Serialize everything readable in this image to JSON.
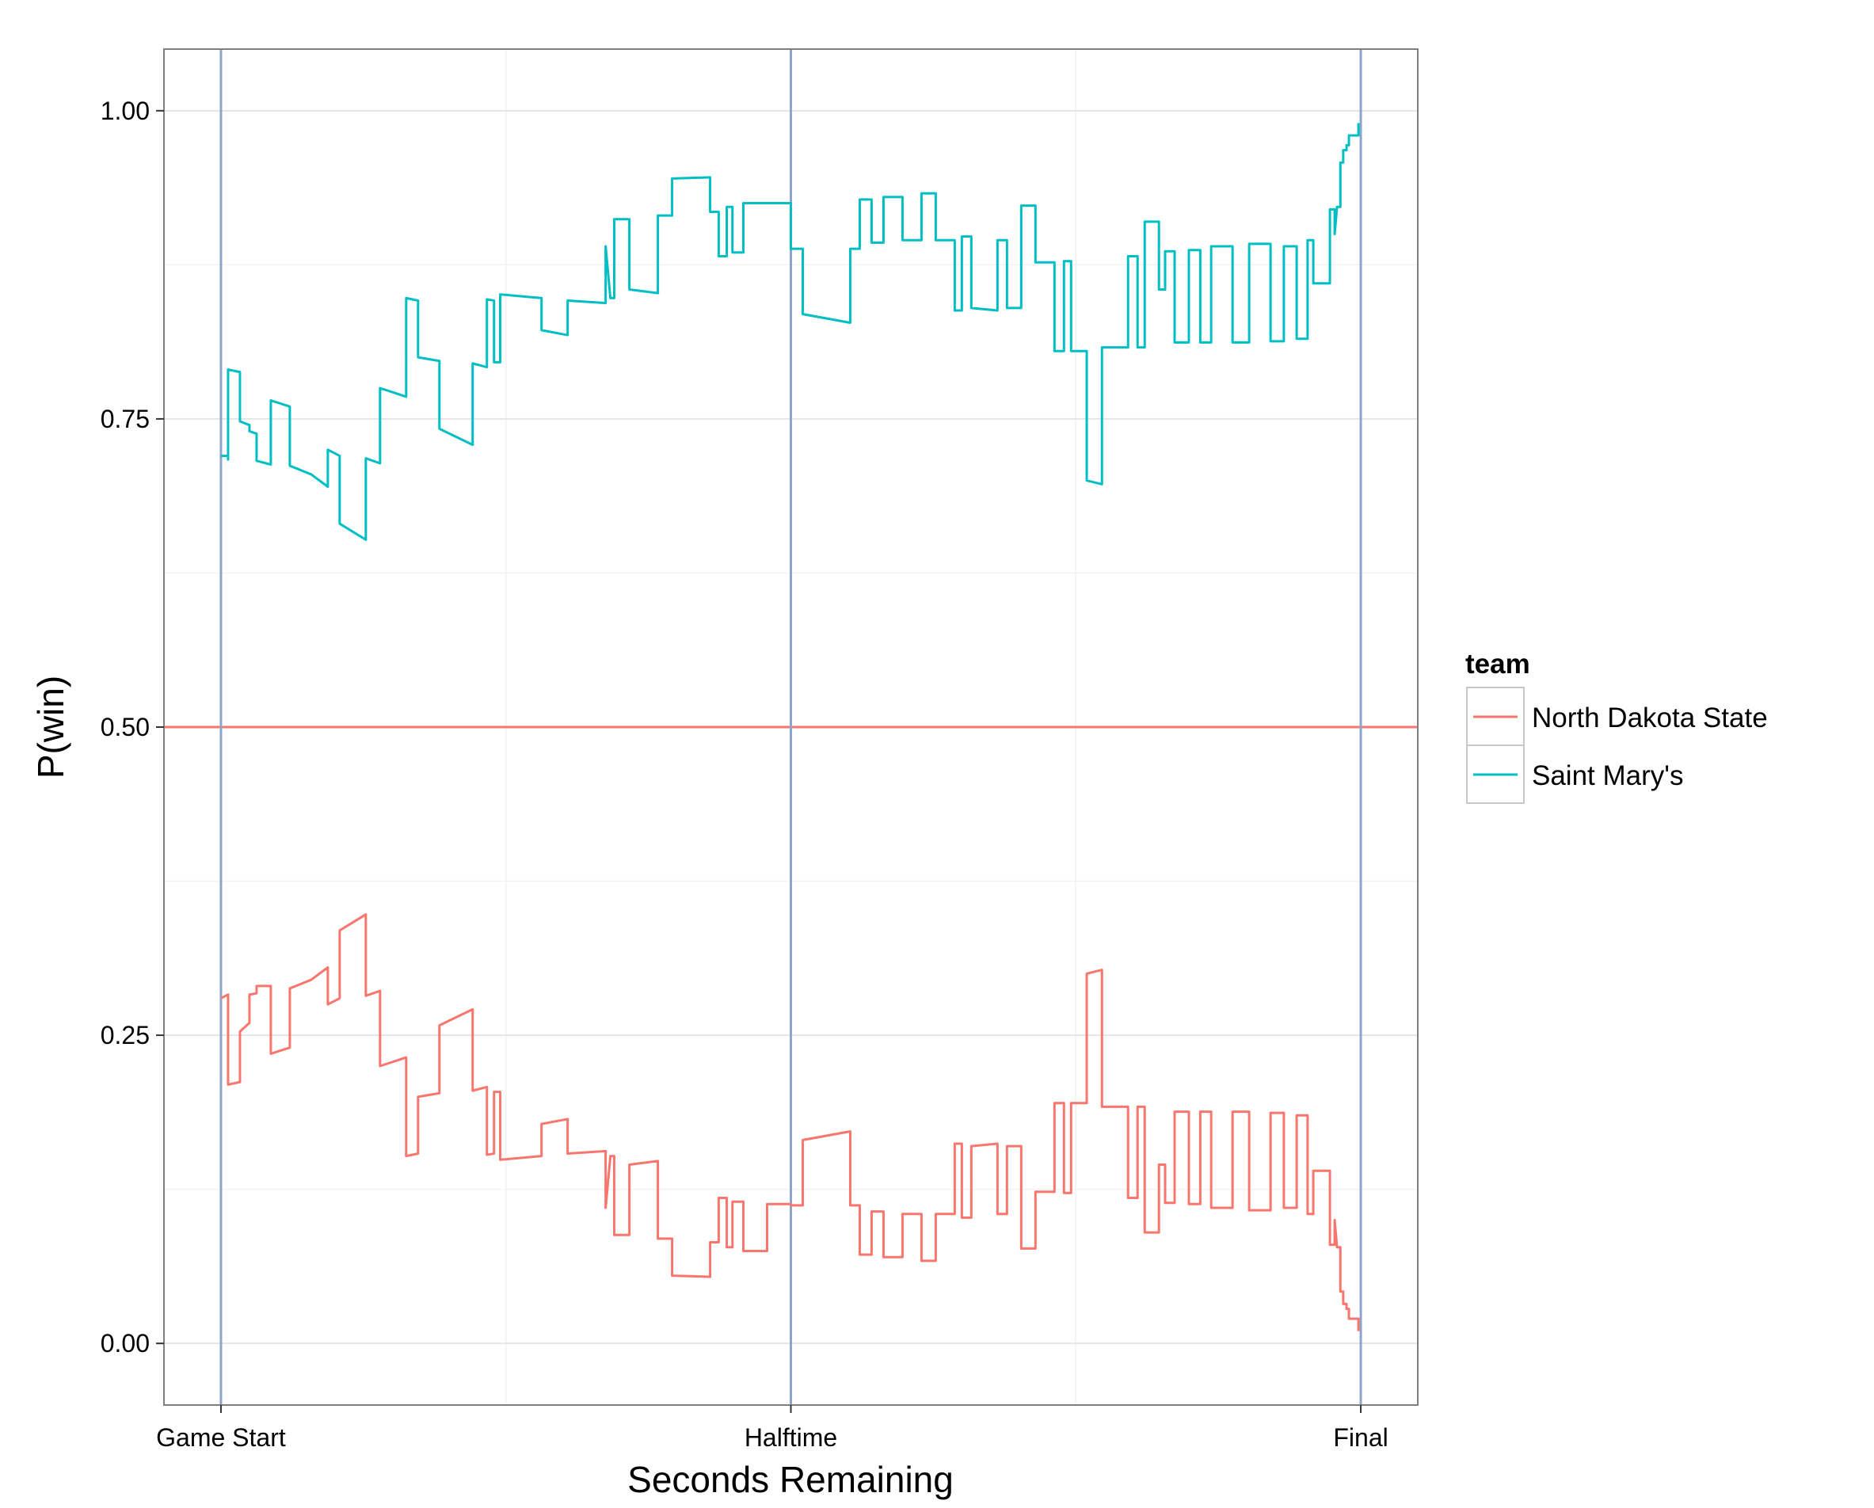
{
  "chart_data": {
    "type": "line",
    "title": "",
    "xlabel": "Seconds Remaining",
    "ylabel": "P(win)",
    "x_ticks": [
      {
        "value": 2400,
        "label": "Game Start"
      },
      {
        "value": 1200,
        "label": "Halftime"
      },
      {
        "value": 0,
        "label": "Final"
      }
    ],
    "x_reversed": true,
    "xlim": [
      2520,
      -120
    ],
    "y_ticks": [
      0,
      0.25,
      0.5,
      0.75,
      1
    ],
    "y_tick_labels": [
      "0.00",
      "0.25",
      "0.50",
      "0.75",
      "1.00"
    ],
    "ylim": [
      -0.05,
      1.05
    ],
    "grid": true,
    "reference_lines": {
      "horizontal": {
        "y": 0.5,
        "color": "#F8766D"
      },
      "vertical": {
        "x": [
          2400,
          1200,
          0
        ],
        "color": "#8DA5C8"
      }
    },
    "legend": {
      "title": "team",
      "placement": "right",
      "entries": [
        {
          "label": "North Dakota State",
          "color": "#F8766D"
        },
        {
          "label": "Saint Mary's",
          "color": "#00BFC4"
        }
      ]
    },
    "series": [
      {
        "name": "Saint Mary's",
        "color": "#00BFC4",
        "points": [
          [
            2400,
            0.72
          ],
          [
            2385,
            0.72
          ],
          [
            2385,
            0.717
          ],
          [
            2385,
            0.79
          ],
          [
            2360,
            0.788
          ],
          [
            2360,
            0.748
          ],
          [
            2340,
            0.745
          ],
          [
            2340,
            0.74
          ],
          [
            2325,
            0.738
          ],
          [
            2325,
            0.716
          ],
          [
            2295,
            0.713
          ],
          [
            2295,
            0.765
          ],
          [
            2255,
            0.76
          ],
          [
            2255,
            0.712
          ],
          [
            2210,
            0.705
          ],
          [
            2175,
            0.695
          ],
          [
            2175,
            0.725
          ],
          [
            2150,
            0.72
          ],
          [
            2150,
            0.665
          ],
          [
            2095,
            0.652
          ],
          [
            2095,
            0.718
          ],
          [
            2065,
            0.714
          ],
          [
            2065,
            0.775
          ],
          [
            2010,
            0.768
          ],
          [
            2010,
            0.848
          ],
          [
            1985,
            0.846
          ],
          [
            1985,
            0.8
          ],
          [
            1940,
            0.797
          ],
          [
            1940,
            0.742
          ],
          [
            1870,
            0.729
          ],
          [
            1870,
            0.795
          ],
          [
            1840,
            0.792
          ],
          [
            1840,
            0.847
          ],
          [
            1825,
            0.846
          ],
          [
            1825,
            0.796
          ],
          [
            1812,
            0.796
          ],
          [
            1812,
            0.851
          ],
          [
            1725,
            0.848
          ],
          [
            1725,
            0.822
          ],
          [
            1670,
            0.818
          ],
          [
            1670,
            0.846
          ],
          [
            1590,
            0.844
          ],
          [
            1590,
            0.89
          ],
          [
            1580,
            0.848
          ],
          [
            1572,
            0.848
          ],
          [
            1572,
            0.912
          ],
          [
            1540,
            0.912
          ],
          [
            1540,
            0.855
          ],
          [
            1480,
            0.852
          ],
          [
            1480,
            0.915
          ],
          [
            1450,
            0.915
          ],
          [
            1450,
            0.945
          ],
          [
            1370,
            0.946
          ],
          [
            1370,
            0.918
          ],
          [
            1352,
            0.918
          ],
          [
            1352,
            0.882
          ],
          [
            1335,
            0.882
          ],
          [
            1335,
            0.922
          ],
          [
            1323,
            0.922
          ],
          [
            1323,
            0.885
          ],
          [
            1300,
            0.885
          ],
          [
            1300,
            0.925
          ],
          [
            1200,
            0.925
          ],
          [
            1200,
            0.888
          ],
          [
            1175,
            0.888
          ],
          [
            1175,
            0.835
          ],
          [
            1075,
            0.828
          ],
          [
            1075,
            0.888
          ],
          [
            1055,
            0.888
          ],
          [
            1055,
            0.928
          ],
          [
            1030,
            0.928
          ],
          [
            1030,
            0.893
          ],
          [
            1005,
            0.893
          ],
          [
            1005,
            0.93
          ],
          [
            965,
            0.93
          ],
          [
            965,
            0.895
          ],
          [
            925,
            0.895
          ],
          [
            925,
            0.933
          ],
          [
            895,
            0.933
          ],
          [
            895,
            0.895
          ],
          [
            855,
            0.895
          ],
          [
            855,
            0.838
          ],
          [
            840,
            0.838
          ],
          [
            840,
            0.898
          ],
          [
            820,
            0.898
          ],
          [
            820,
            0.84
          ],
          [
            765,
            0.838
          ],
          [
            765,
            0.895
          ],
          [
            745,
            0.895
          ],
          [
            745,
            0.84
          ],
          [
            715,
            0.84
          ],
          [
            715,
            0.923
          ],
          [
            685,
            0.923
          ],
          [
            685,
            0.877
          ],
          [
            645,
            0.877
          ],
          [
            645,
            0.805
          ],
          [
            625,
            0.805
          ],
          [
            625,
            0.878
          ],
          [
            610,
            0.878
          ],
          [
            610,
            0.805
          ],
          [
            577,
            0.805
          ],
          [
            577,
            0.7
          ],
          [
            545,
            0.697
          ],
          [
            545,
            0.808
          ],
          [
            490,
            0.808
          ],
          [
            490,
            0.882
          ],
          [
            470,
            0.882
          ],
          [
            470,
            0.808
          ],
          [
            455,
            0.808
          ],
          [
            455,
            0.91
          ],
          [
            425,
            0.91
          ],
          [
            425,
            0.855
          ],
          [
            412,
            0.855
          ],
          [
            412,
            0.886
          ],
          [
            392,
            0.886
          ],
          [
            392,
            0.812
          ],
          [
            362,
            0.812
          ],
          [
            362,
            0.887
          ],
          [
            338,
            0.887
          ],
          [
            338,
            0.812
          ],
          [
            315,
            0.812
          ],
          [
            315,
            0.89
          ],
          [
            270,
            0.89
          ],
          [
            270,
            0.812
          ],
          [
            235,
            0.812
          ],
          [
            235,
            0.892
          ],
          [
            190,
            0.892
          ],
          [
            190,
            0.813
          ],
          [
            162,
            0.813
          ],
          [
            162,
            0.89
          ],
          [
            135,
            0.89
          ],
          [
            135,
            0.815
          ],
          [
            112,
            0.815
          ],
          [
            112,
            0.895
          ],
          [
            100,
            0.895
          ],
          [
            100,
            0.86
          ],
          [
            65,
            0.86
          ],
          [
            65,
            0.92
          ],
          [
            55,
            0.92
          ],
          [
            55,
            0.9
          ],
          [
            50,
            0.922
          ],
          [
            43,
            0.922
          ],
          [
            43,
            0.958
          ],
          [
            37,
            0.958
          ],
          [
            37,
            0.968
          ],
          [
            30,
            0.968
          ],
          [
            30,
            0.972
          ],
          [
            25,
            0.972
          ],
          [
            25,
            0.98
          ],
          [
            5,
            0.98
          ],
          [
            5,
            0.99
          ]
        ]
      },
      {
        "name": "North Dakota State",
        "color": "#F8766D",
        "points": [
          [
            2400,
            0.28
          ],
          [
            2385,
            0.283
          ],
          [
            2385,
            0.21
          ],
          [
            2360,
            0.212
          ],
          [
            2360,
            0.253
          ],
          [
            2340,
            0.26
          ],
          [
            2340,
            0.283
          ],
          [
            2325,
            0.284
          ],
          [
            2325,
            0.29
          ],
          [
            2295,
            0.29
          ],
          [
            2295,
            0.235
          ],
          [
            2255,
            0.24
          ],
          [
            2255,
            0.288
          ],
          [
            2210,
            0.295
          ],
          [
            2175,
            0.305
          ],
          [
            2175,
            0.275
          ],
          [
            2150,
            0.28
          ],
          [
            2150,
            0.335
          ],
          [
            2095,
            0.348
          ],
          [
            2095,
            0.282
          ],
          [
            2065,
            0.286
          ],
          [
            2065,
            0.225
          ],
          [
            2010,
            0.232
          ],
          [
            2010,
            0.152
          ],
          [
            1985,
            0.154
          ],
          [
            1985,
            0.2
          ],
          [
            1940,
            0.203
          ],
          [
            1940,
            0.258
          ],
          [
            1870,
            0.271
          ],
          [
            1870,
            0.205
          ],
          [
            1840,
            0.208
          ],
          [
            1840,
            0.153
          ],
          [
            1825,
            0.154
          ],
          [
            1825,
            0.204
          ],
          [
            1812,
            0.204
          ],
          [
            1812,
            0.149
          ],
          [
            1725,
            0.152
          ],
          [
            1725,
            0.178
          ],
          [
            1670,
            0.182
          ],
          [
            1670,
            0.154
          ],
          [
            1590,
            0.156
          ],
          [
            1590,
            0.11
          ],
          [
            1580,
            0.152
          ],
          [
            1572,
            0.152
          ],
          [
            1572,
            0.088
          ],
          [
            1540,
            0.088
          ],
          [
            1540,
            0.145
          ],
          [
            1480,
            0.148
          ],
          [
            1480,
            0.085
          ],
          [
            1450,
            0.085
          ],
          [
            1450,
            0.055
          ],
          [
            1370,
            0.054
          ],
          [
            1370,
            0.082
          ],
          [
            1352,
            0.082
          ],
          [
            1352,
            0.118
          ],
          [
            1335,
            0.118
          ],
          [
            1335,
            0.078
          ],
          [
            1323,
            0.078
          ],
          [
            1323,
            0.115
          ],
          [
            1300,
            0.115
          ],
          [
            1300,
            0.075
          ],
          [
            1250,
            0.075
          ],
          [
            1250,
            0.113
          ],
          [
            1200,
            0.113
          ],
          [
            1200,
            0.112
          ],
          [
            1175,
            0.112
          ],
          [
            1175,
            0.165
          ],
          [
            1075,
            0.172
          ],
          [
            1075,
            0.112
          ],
          [
            1055,
            0.112
          ],
          [
            1055,
            0.072
          ],
          [
            1030,
            0.072
          ],
          [
            1030,
            0.107
          ],
          [
            1005,
            0.107
          ],
          [
            1005,
            0.07
          ],
          [
            965,
            0.07
          ],
          [
            965,
            0.105
          ],
          [
            925,
            0.105
          ],
          [
            925,
            0.067
          ],
          [
            895,
            0.067
          ],
          [
            895,
            0.105
          ],
          [
            855,
            0.105
          ],
          [
            855,
            0.162
          ],
          [
            840,
            0.162
          ],
          [
            840,
            0.102
          ],
          [
            820,
            0.102
          ],
          [
            820,
            0.16
          ],
          [
            765,
            0.162
          ],
          [
            765,
            0.105
          ],
          [
            745,
            0.105
          ],
          [
            745,
            0.16
          ],
          [
            715,
            0.16
          ],
          [
            715,
            0.077
          ],
          [
            685,
            0.077
          ],
          [
            685,
            0.123
          ],
          [
            645,
            0.123
          ],
          [
            645,
            0.195
          ],
          [
            625,
            0.195
          ],
          [
            625,
            0.122
          ],
          [
            610,
            0.122
          ],
          [
            610,
            0.195
          ],
          [
            577,
            0.195
          ],
          [
            577,
            0.3
          ],
          [
            545,
            0.303
          ],
          [
            545,
            0.192
          ],
          [
            490,
            0.192
          ],
          [
            490,
            0.118
          ],
          [
            470,
            0.118
          ],
          [
            470,
            0.192
          ],
          [
            455,
            0.192
          ],
          [
            455,
            0.09
          ],
          [
            425,
            0.09
          ],
          [
            425,
            0.145
          ],
          [
            412,
            0.145
          ],
          [
            412,
            0.114
          ],
          [
            392,
            0.114
          ],
          [
            392,
            0.188
          ],
          [
            362,
            0.188
          ],
          [
            362,
            0.113
          ],
          [
            338,
            0.113
          ],
          [
            338,
            0.188
          ],
          [
            315,
            0.188
          ],
          [
            315,
            0.11
          ],
          [
            270,
            0.11
          ],
          [
            270,
            0.188
          ],
          [
            235,
            0.188
          ],
          [
            235,
            0.108
          ],
          [
            190,
            0.108
          ],
          [
            190,
            0.187
          ],
          [
            162,
            0.187
          ],
          [
            162,
            0.11
          ],
          [
            135,
            0.11
          ],
          [
            135,
            0.185
          ],
          [
            112,
            0.185
          ],
          [
            112,
            0.105
          ],
          [
            100,
            0.105
          ],
          [
            100,
            0.14
          ],
          [
            65,
            0.14
          ],
          [
            65,
            0.08
          ],
          [
            55,
            0.08
          ],
          [
            55,
            0.1
          ],
          [
            50,
            0.078
          ],
          [
            43,
            0.078
          ],
          [
            43,
            0.042
          ],
          [
            37,
            0.042
          ],
          [
            37,
            0.032
          ],
          [
            30,
            0.032
          ],
          [
            30,
            0.028
          ],
          [
            25,
            0.028
          ],
          [
            25,
            0.02
          ],
          [
            5,
            0.02
          ],
          [
            5,
            0.01
          ]
        ]
      }
    ]
  }
}
